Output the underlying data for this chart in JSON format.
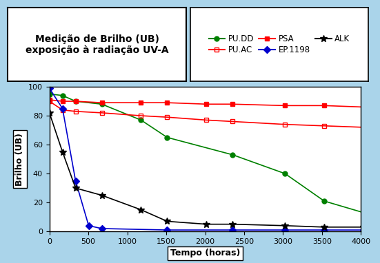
{
  "title": "Medição de Brilho (UB)\nexposição à radiação UV-A",
  "xlabel": "Tempo (horas)",
  "ylabel": "Brilho (UB)",
  "background_color": "#aad4ea",
  "plot_bg_color": "#ffffff",
  "xlim": [
    0,
    4000
  ],
  "ylim": [
    0,
    100
  ],
  "xticks": [
    0,
    500,
    1000,
    1500,
    2000,
    2500,
    3000,
    3500,
    4000
  ],
  "yticks": [
    0,
    20,
    40,
    60,
    80,
    100
  ],
  "series": {
    "PU.DD": {
      "x": [
        0,
        168,
        336,
        672,
        1176,
        1512,
        2352,
        3024,
        3528,
        4032
      ],
      "y": [
        95,
        94,
        90,
        88,
        77,
        65,
        53,
        40,
        21,
        13
      ],
      "color": "#008000",
      "marker": "o",
      "linestyle": "-",
      "markersize": 5,
      "fillstyle": "full"
    },
    "PU.AC": {
      "x": [
        0,
        168,
        336,
        672,
        1176,
        1512,
        2016,
        2352,
        3024,
        3528,
        4032
      ],
      "y": [
        90,
        84,
        83,
        82,
        80,
        79,
        77,
        76,
        74,
        73,
        72
      ],
      "color": "#ff0000",
      "marker": "s",
      "linestyle": "-",
      "markersize": 5,
      "fillstyle": "none"
    },
    "PSA": {
      "x": [
        0,
        168,
        336,
        672,
        1176,
        1512,
        2016,
        2352,
        3024,
        3528,
        4032
      ],
      "y": [
        91,
        90,
        90,
        89,
        89,
        89,
        88,
        88,
        87,
        87,
        86
      ],
      "color": "#ff0000",
      "marker": "s",
      "linestyle": "-",
      "markersize": 5,
      "fillstyle": "full"
    },
    "EP.1198": {
      "x": [
        0,
        168,
        336,
        504,
        672,
        1512,
        2352,
        3024,
        3528,
        4032
      ],
      "y": [
        99,
        85,
        35,
        4,
        2,
        1,
        1,
        1,
        1,
        1
      ],
      "color": "#0000cd",
      "marker": "D",
      "linestyle": "-",
      "markersize": 5,
      "fillstyle": "full"
    },
    "ALK": {
      "x": [
        0,
        168,
        336,
        672,
        1176,
        1512,
        2016,
        2352,
        3024,
        3528,
        4032
      ],
      "y": [
        82,
        55,
        30,
        25,
        15,
        7,
        5,
        5,
        4,
        3,
        3
      ],
      "color": "#000000",
      "marker": "*",
      "linestyle": "-",
      "markersize": 7,
      "fillstyle": "full"
    }
  },
  "legend": {
    "entries": [
      "PU.DD",
      "PU.AC",
      "PSA",
      "EP.1198",
      "ALK"
    ],
    "ncol": 3
  }
}
